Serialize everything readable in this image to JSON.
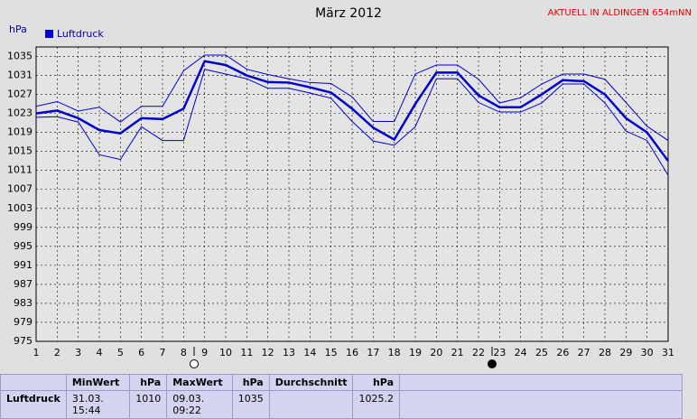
{
  "chart_data": {
    "type": "line",
    "title": "März 2012",
    "annotation": "AKTUELL IN ALDINGEN 654mNN",
    "y_label": "hPa",
    "x": [
      1,
      2,
      3,
      4,
      5,
      6,
      7,
      8,
      9,
      10,
      11,
      12,
      13,
      14,
      15,
      16,
      17,
      18,
      19,
      20,
      21,
      22,
      23,
      24,
      25,
      26,
      27,
      28,
      29,
      30,
      31
    ],
    "xlim": [
      1,
      31
    ],
    "xticks": [
      1,
      2,
      3,
      4,
      5,
      6,
      7,
      8,
      9,
      10,
      11,
      12,
      13,
      14,
      15,
      16,
      17,
      18,
      19,
      20,
      21,
      22,
      23,
      24,
      25,
      26,
      27,
      28,
      29,
      30,
      31
    ],
    "ylim": [
      975,
      1037
    ],
    "yticks": [
      975,
      979,
      983,
      987,
      991,
      995,
      999,
      1003,
      1007,
      1011,
      1015,
      1019,
      1023,
      1027,
      1031,
      1035
    ],
    "grid": true,
    "series": [
      {
        "name": "Luftdruck",
        "color": "#0000cc",
        "values": [
          1023,
          1023.6,
          1022,
          1019.5,
          1018.8,
          1022,
          1021.8,
          1024,
          1034,
          1033.2,
          1031,
          1029.6,
          1029.5,
          1028.5,
          1027.4,
          1024,
          1020,
          1017.5,
          1025,
          1031.6,
          1031.6,
          1026.8,
          1024.3,
          1024.3,
          1027,
          1030,
          1029.8,
          1027,
          1022,
          1019,
          1013
        ]
      },
      {
        "color": "#0000cc",
        "values": [
          1024.5,
          1025.5,
          1023.5,
          1024.3,
          1021.2,
          1024.5,
          1024.5,
          1032,
          1035.3,
          1035.3,
          1032.3,
          1031.2,
          1030.3,
          1029.5,
          1029.3,
          1026.5,
          1021.3,
          1021.3,
          1031.3,
          1033.2,
          1033.2,
          1030.2,
          1025.2,
          1026.3,
          1029.2,
          1031.3,
          1031.3,
          1030.2,
          1025.3,
          1020.3,
          1017.3
        ]
      },
      {
        "color": "#0000cc",
        "values": [
          1022.2,
          1022.3,
          1021.2,
          1014.3,
          1013.3,
          1020.2,
          1017.3,
          1017.3,
          1032.3,
          1031.3,
          1030.3,
          1028.3,
          1028.3,
          1027.3,
          1026.2,
          1021.3,
          1017.2,
          1016.3,
          1020.2,
          1030.3,
          1030.3,
          1025.3,
          1023.3,
          1023.3,
          1025.2,
          1029.2,
          1029.2,
          1025.2,
          1019.3,
          1017.3,
          1010
        ]
      }
    ]
  },
  "table": {
    "header": [
      "",
      "MinWert",
      "hPa",
      "MaxWert",
      "hPa",
      "Durchschnitt",
      "hPa"
    ],
    "rows": [
      [
        "Luftdruck",
        "31.03.  15:44",
        "1010",
        "09.03.  09:22",
        "1035",
        "",
        "1025.2"
      ]
    ]
  }
}
